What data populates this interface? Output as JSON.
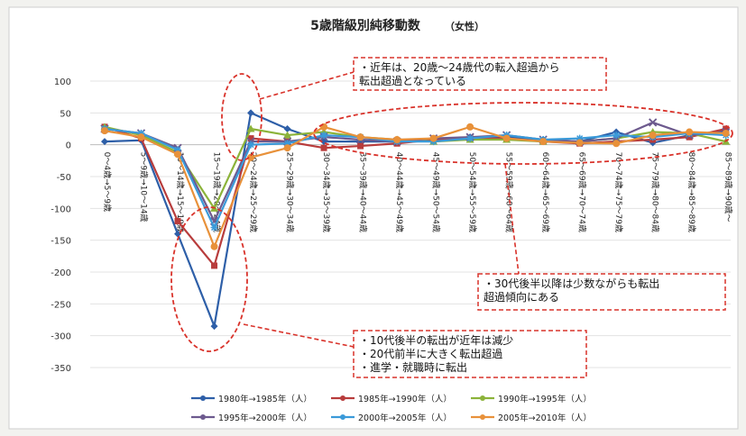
{
  "chart_data": {
    "type": "line",
    "title": "5歳階級別純移動数",
    "subtitle": "（女性）",
    "xlabel": "",
    "ylabel": "",
    "ylim": [
      -350,
      100
    ],
    "yticks": [
      100,
      50,
      0,
      -50,
      -100,
      -150,
      -200,
      -250,
      -300,
      -350
    ],
    "grid": true,
    "legend_position": "bottom",
    "categories": [
      "0～4歳→5～9歳",
      "5～9歳→10～14歳",
      "10～14歳→15～19歳",
      "15～19歳→20～24歳",
      "20～24歳→25～29歳",
      "25～29歳→30～34歳",
      "30～34歳→35～39歳",
      "35～39歳→40～44歳",
      "40～44歳→45～49歳",
      "45～49歳→50～54歳",
      "50～54歳→55～59歳",
      "55～59歳→60～64歳",
      "60～64歳→65～69歳",
      "65～69歳→70～74歳",
      "70～74歳→75～79歳",
      "75～79歳→80～84歳",
      "80～84歳→85～89歳",
      "85～89歳→90歳～"
    ],
    "series": [
      {
        "name": "1980年→1985年（人）",
        "color": "#2e5fa8",
        "marker": "diamond",
        "values": [
          5,
          7,
          -140,
          -285,
          50,
          25,
          5,
          5,
          5,
          8,
          12,
          12,
          8,
          5,
          20,
          3,
          15,
          22
        ]
      },
      {
        "name": "1985年→1990年（人）",
        "color": "#b83c3c",
        "marker": "square",
        "values": [
          28,
          10,
          -120,
          -190,
          10,
          5,
          -5,
          -2,
          2,
          8,
          10,
          10,
          5,
          2,
          5,
          8,
          12,
          25
        ]
      },
      {
        "name": "1990年→1995年（人）",
        "color": "#8cb33a",
        "marker": "triangle",
        "values": [
          28,
          15,
          -12,
          -100,
          25,
          15,
          20,
          12,
          8,
          5,
          8,
          8,
          5,
          5,
          10,
          20,
          18,
          5
        ]
      },
      {
        "name": "1995年→2000年（人）",
        "color": "#6d5a8e",
        "marker": "x",
        "values": [
          25,
          18,
          -5,
          -120,
          5,
          5,
          12,
          8,
          5,
          10,
          12,
          15,
          8,
          5,
          10,
          35,
          15,
          20
        ]
      },
      {
        "name": "2000年→2005年（人）",
        "color": "#3a9ad9",
        "marker": "star",
        "values": [
          25,
          18,
          -8,
          -130,
          0,
          2,
          15,
          12,
          5,
          5,
          10,
          15,
          8,
          10,
          15,
          12,
          18,
          15
        ]
      },
      {
        "name": "2005年→2010年（人）",
        "color": "#e8913a",
        "marker": "circle",
        "values": [
          22,
          12,
          -15,
          -160,
          -20,
          -5,
          28,
          12,
          8,
          10,
          28,
          10,
          5,
          3,
          2,
          15,
          20,
          18
        ]
      }
    ],
    "annotations": [
      {
        "lines": [
          "・近年は、20歳～24歳代の転入超過から",
          "転出超過となっている"
        ]
      },
      {
        "lines": [
          "・30代後半以降は少数ながらも転出",
          "超過傾向にある"
        ]
      },
      {
        "lines": [
          "・10代後半の転出が近年は減少",
          "・20代前半に大きく転出超過",
          "・進学・就職時に転出"
        ]
      }
    ]
  }
}
